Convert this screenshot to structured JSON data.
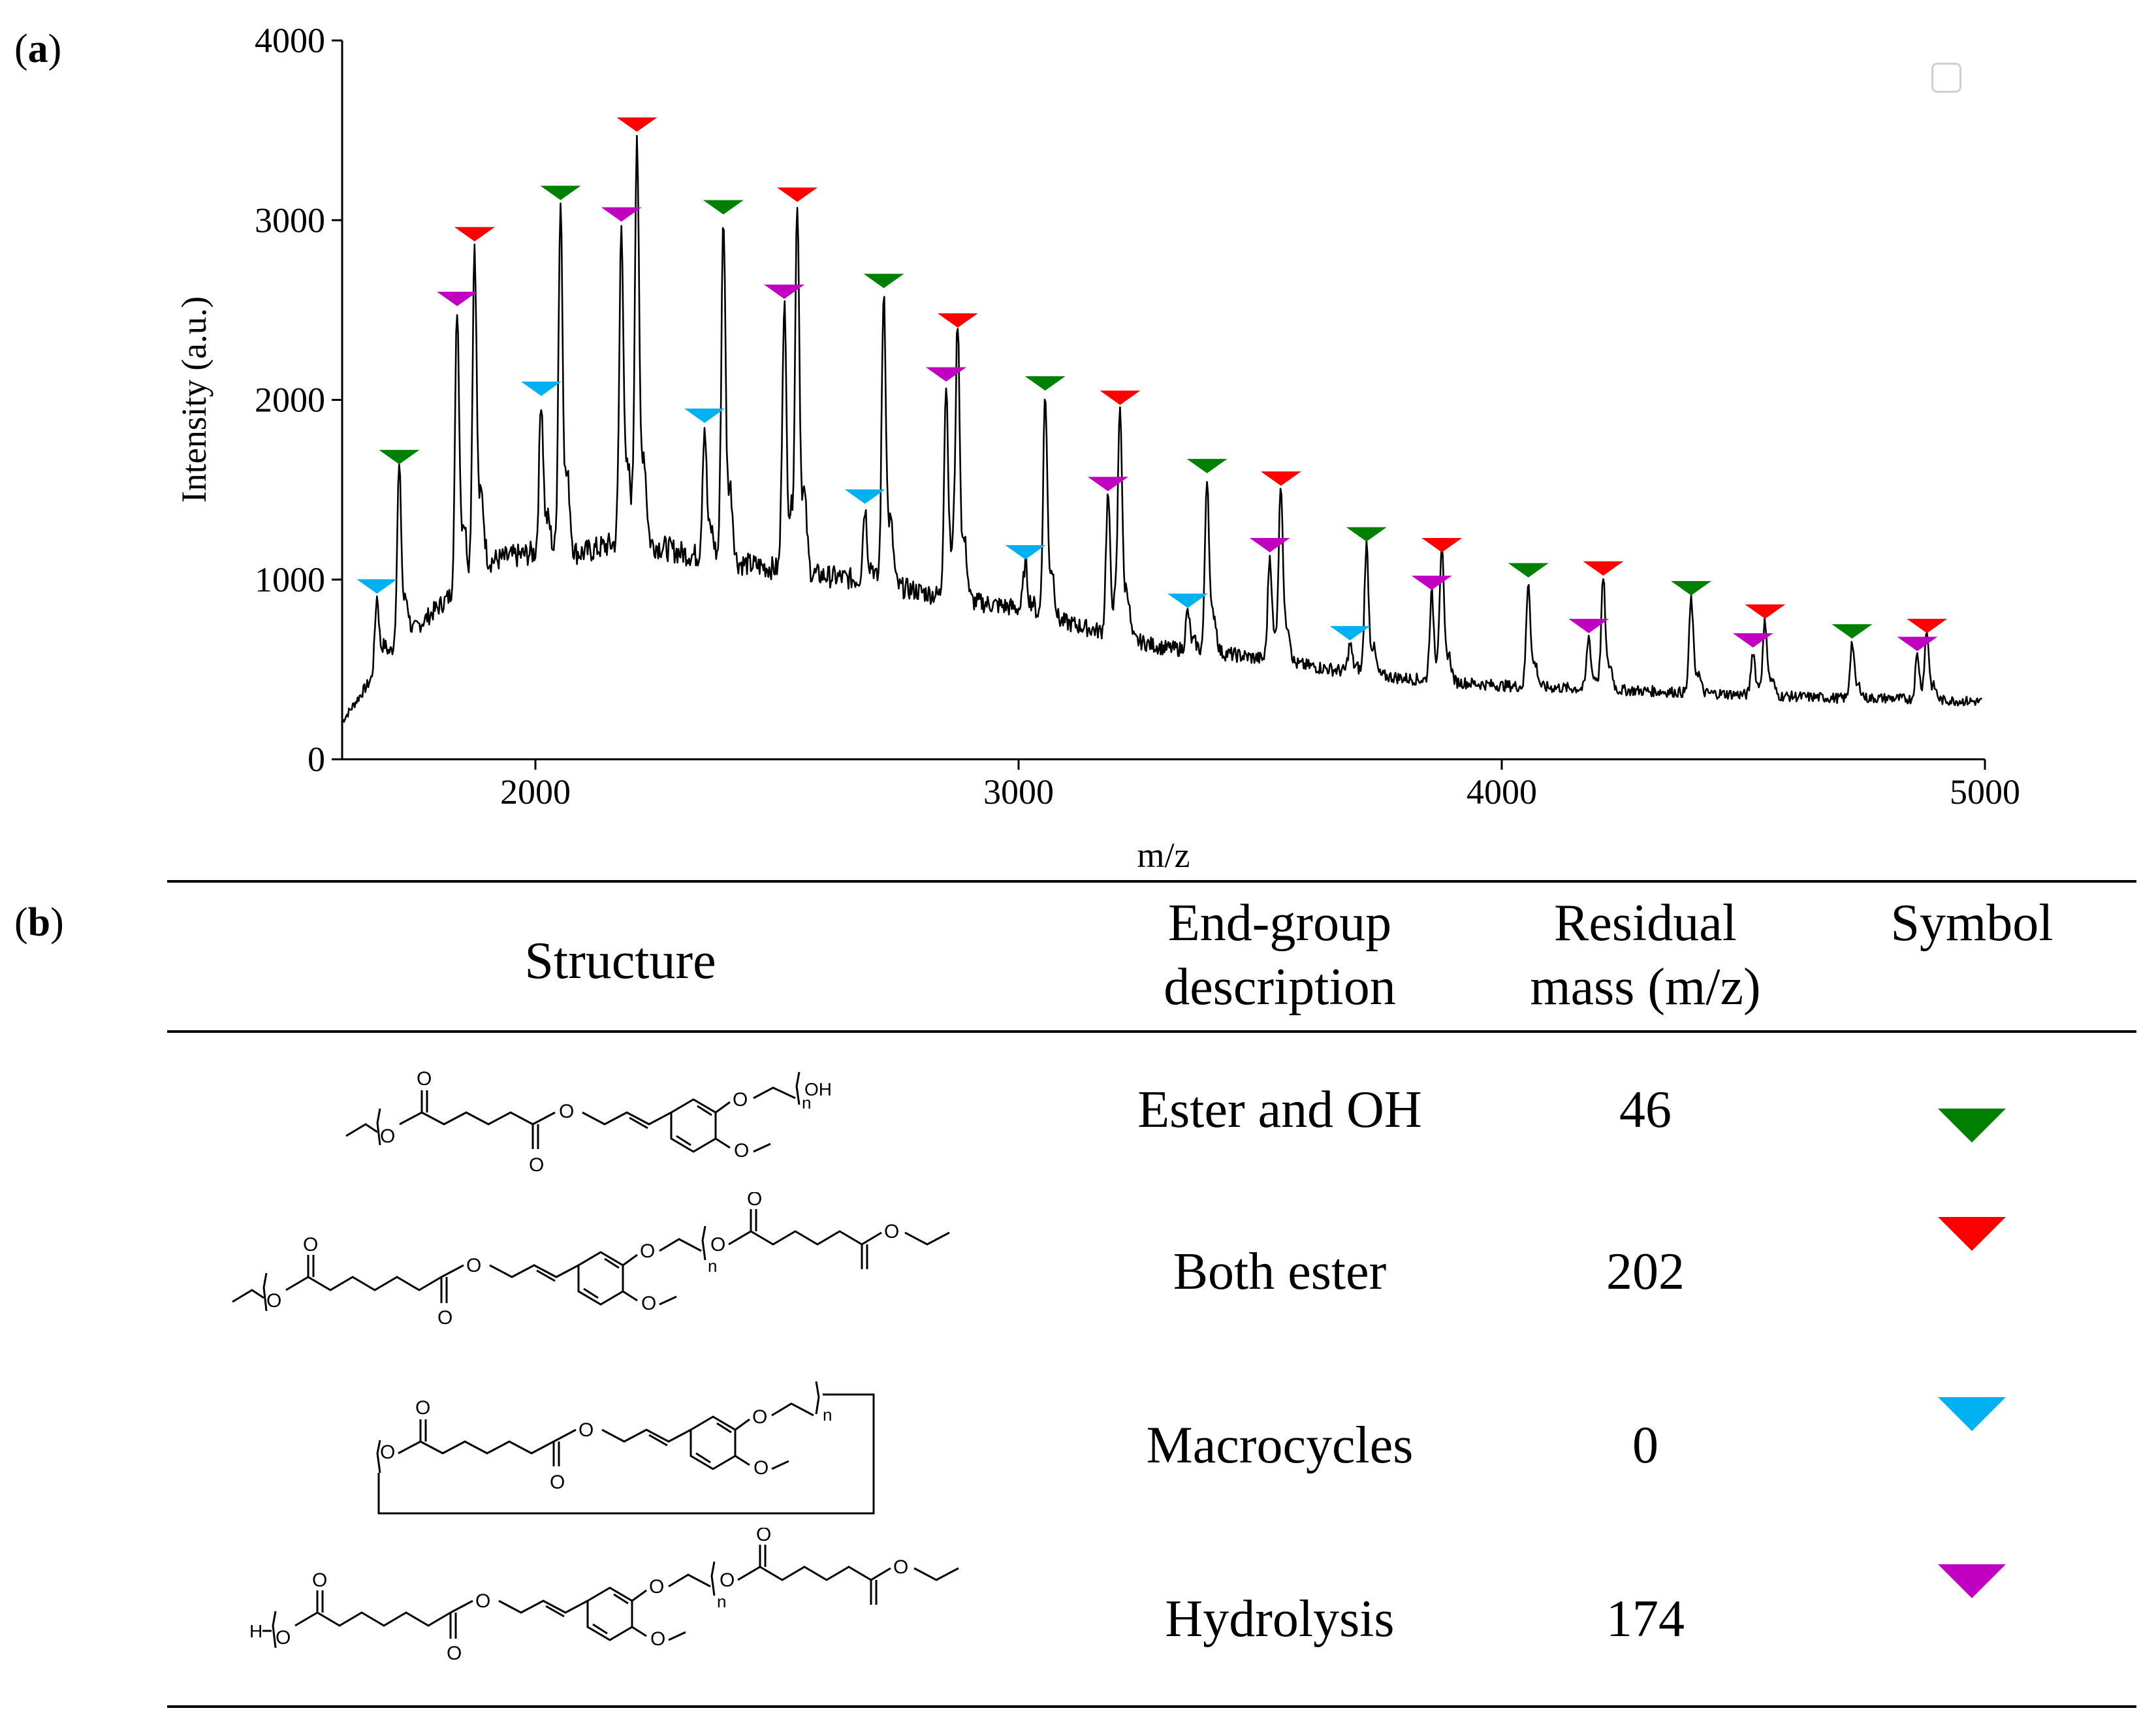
{
  "panels": {
    "a": "a",
    "b": "b"
  },
  "chart_data": {
    "type": "line",
    "title": "",
    "xlabel": "m/z",
    "ylabel": "Intensity (a.u.)",
    "xlim": [
      1600,
      5000
    ],
    "ylim": [
      0,
      4000
    ],
    "x_ticks": [
      2000,
      3000,
      4000,
      5000
    ],
    "y_ticks": [
      0,
      1000,
      2000,
      3000,
      4000
    ],
    "grid": false,
    "baseline": [
      [
        1600,
        210
      ],
      [
        1700,
        600
      ],
      [
        1800,
        850
      ],
      [
        1900,
        1100
      ],
      [
        2000,
        1150
      ],
      [
        2100,
        1150
      ],
      [
        2200,
        1230
      ],
      [
        2300,
        1150
      ],
      [
        2400,
        1100
      ],
      [
        2500,
        1060
      ],
      [
        2600,
        1020
      ],
      [
        2700,
        990
      ],
      [
        2800,
        930
      ],
      [
        2900,
        880
      ],
      [
        3000,
        840
      ],
      [
        3100,
        760
      ],
      [
        3200,
        690
      ],
      [
        3300,
        620
      ],
      [
        3400,
        600
      ],
      [
        3500,
        560
      ],
      [
        3600,
        520
      ],
      [
        3700,
        480
      ],
      [
        3800,
        450
      ],
      [
        3900,
        430
      ],
      [
        4000,
        410
      ],
      [
        4100,
        400
      ],
      [
        4200,
        390
      ],
      [
        4300,
        380
      ],
      [
        4400,
        370
      ],
      [
        4500,
        360
      ],
      [
        4600,
        350
      ],
      [
        4700,
        340
      ],
      [
        4800,
        340
      ],
      [
        4900,
        330
      ],
      [
        5000,
        320
      ]
    ],
    "series": [
      {
        "name": "Ester and OH",
        "color": "#008000",
        "residual_mass": 46,
        "peaks": [
          [
            1718,
            1620
          ],
          [
            2052,
            3090
          ],
          [
            2389,
            3010
          ],
          [
            2721,
            2600
          ],
          [
            3055,
            2030
          ],
          [
            3390,
            1570
          ],
          [
            3720,
            1190
          ],
          [
            4055,
            990
          ],
          [
            4392,
            890
          ],
          [
            4725,
            650
          ]
        ]
      },
      {
        "name": "Both ester",
        "color": "#ff0000",
        "residual_mass": 202,
        "peaks": [
          [
            1874,
            2860
          ],
          [
            2210,
            3470
          ],
          [
            2542,
            3080
          ],
          [
            2874,
            2380
          ],
          [
            3210,
            1950
          ],
          [
            3543,
            1500
          ],
          [
            3876,
            1130
          ],
          [
            4210,
            1000
          ],
          [
            4545,
            760
          ],
          [
            4880,
            680
          ]
        ]
      },
      {
        "name": "Macrocycles",
        "color": "#00b0f0",
        "residual_mass": 0,
        "peaks": [
          [
            1672,
            900
          ],
          [
            2012,
            2000
          ],
          [
            2350,
            1850
          ],
          [
            2682,
            1400
          ],
          [
            3014,
            1090
          ],
          [
            3350,
            820
          ],
          [
            3686,
            640
          ]
        ]
      },
      {
        "name": "Hydrolysis",
        "color": "#c000c0",
        "residual_mass": 174,
        "peaks": [
          [
            1838,
            2500
          ],
          [
            2178,
            2970
          ],
          [
            2515,
            2540
          ],
          [
            2850,
            2080
          ],
          [
            3185,
            1470
          ],
          [
            3520,
            1130
          ],
          [
            3855,
            920
          ],
          [
            4180,
            680
          ],
          [
            4520,
            600
          ],
          [
            4860,
            580
          ]
        ]
      }
    ]
  },
  "table": {
    "headers": {
      "structure": "Structure",
      "endgroup": [
        "End-group",
        "description"
      ],
      "residual": [
        "Residual",
        "mass (m/z)"
      ],
      "symbol": "Symbol"
    },
    "rows": [
      {
        "endgroup": "Ester and OH",
        "residual": "46",
        "symbol_color": "#008000",
        "chem": {
          "o1": "O",
          "o2": "O",
          "o3": "O",
          "o4": "O",
          "o5": "O",
          "o6": "O",
          "n": "n",
          "end": "OH"
        }
      },
      {
        "endgroup": "Both ester",
        "residual": "202",
        "symbol_color": "#ff0000",
        "chem": {
          "o1": "O",
          "o2": "O",
          "o3": "O",
          "o4": "O",
          "o5": "O",
          "o6": "O",
          "o7": "O",
          "o8": "O",
          "o9": "O",
          "n": "n"
        }
      },
      {
        "endgroup": "Macrocycles",
        "residual": "0",
        "symbol_color": "#00b0f0",
        "chem": {
          "o1": "O",
          "o2": "O",
          "o3": "O",
          "o4": "O",
          "o5": "O",
          "o6": "O",
          "n": "n"
        }
      },
      {
        "endgroup": "Hydrolysis",
        "residual": "174",
        "symbol_color": "#c000c0",
        "chem": {
          "h": "H",
          "o1": "O",
          "o2": "O",
          "o3": "O",
          "o4": "O",
          "o5": "O",
          "o6": "O",
          "o7": "O",
          "o8": "O",
          "o9": "O",
          "n": "n"
        }
      }
    ]
  }
}
